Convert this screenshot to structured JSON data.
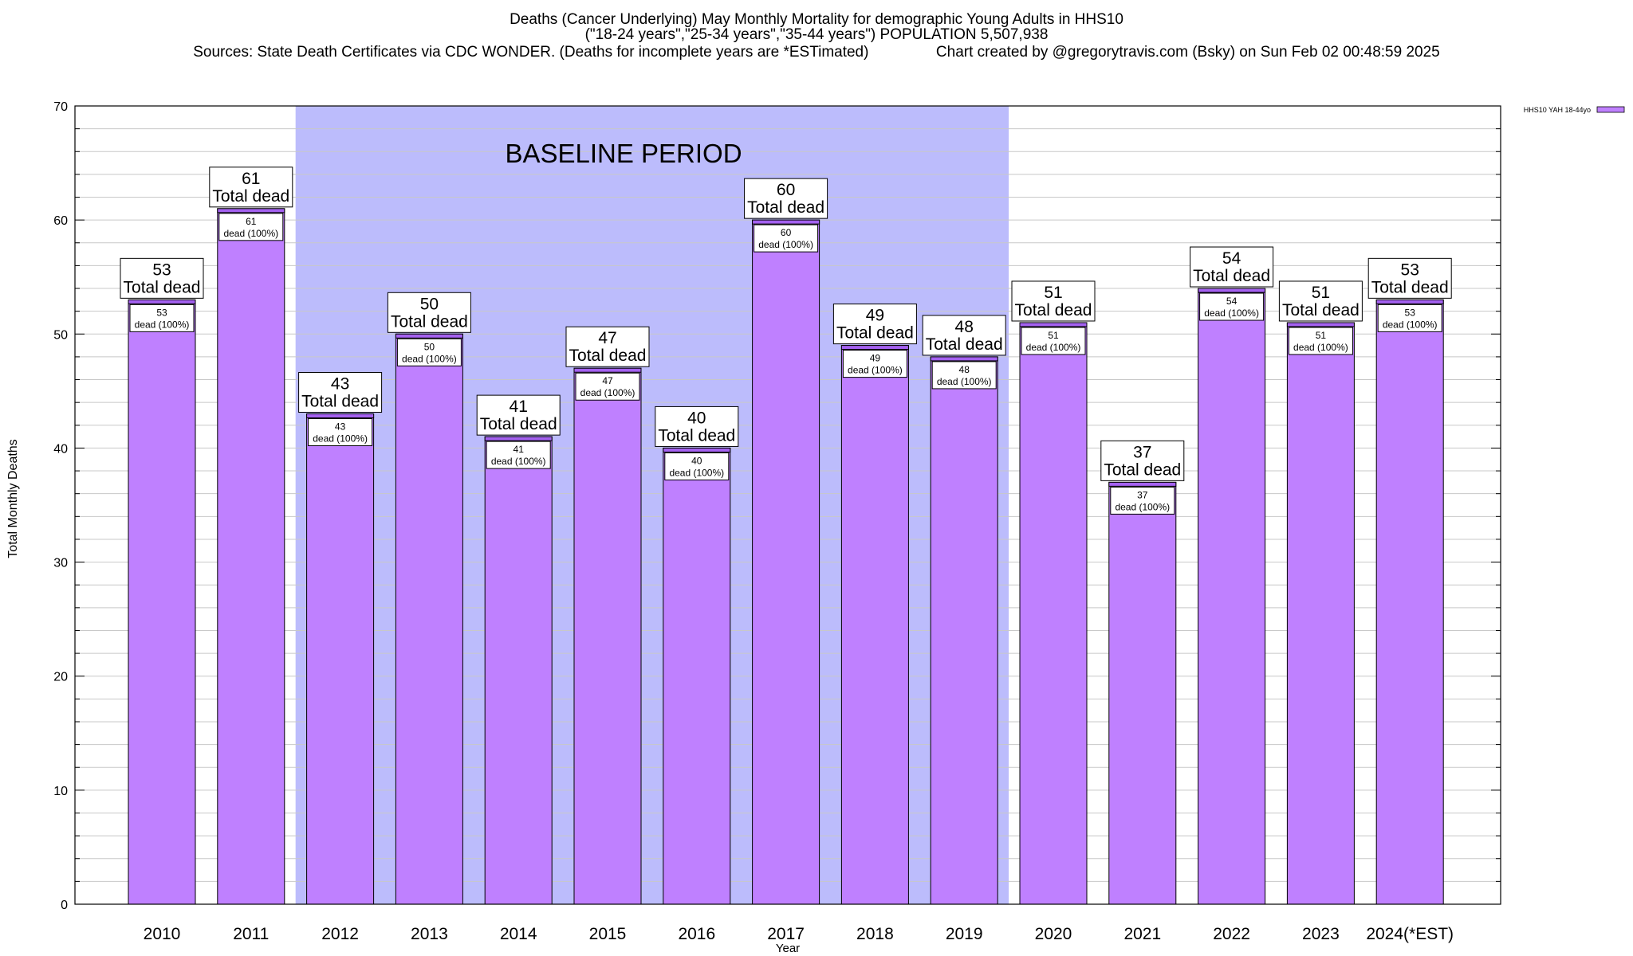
{
  "chart_data": {
    "type": "bar",
    "title_lines": [
      "Deaths (Cancer Underlying) May Monthly Mortality for demographic Young Adults in HHS10",
      "(\"18-24 years\",\"25-34 years\",\"35-44 years\") POPULATION 5,507,938",
      "Sources: State Death Certificates via CDC WONDER. (Deaths for incomplete years are *ESTimated)                Chart created by @gregorytravis.com (Bsky) on Sun Feb 02 00:48:59 2025"
    ],
    "xlabel": "Year",
    "ylabel": "Total Monthly Deaths",
    "ylim": [
      0,
      70
    ],
    "y_ticks": [
      0,
      10,
      20,
      30,
      40,
      50,
      60,
      70
    ],
    "grid": true,
    "legend": {
      "position": "top-right",
      "label": "HHS10 YAH 18-44yo"
    },
    "categories": [
      "2010",
      "2011",
      "2012",
      "2013",
      "2014",
      "2015",
      "2016",
      "2017",
      "2018",
      "2019",
      "2020",
      "2021",
      "2022",
      "2023",
      "2024(*EST)"
    ],
    "series": [
      {
        "name": "HHS10 YAH 18-44yo",
        "values": [
          53,
          61,
          43,
          50,
          41,
          47,
          40,
          60,
          49,
          48,
          51,
          37,
          54,
          51,
          53
        ]
      }
    ],
    "total_label_suffix": "Total dead",
    "inner_label_suffix": "dead (100%)",
    "baseline": {
      "label": "BASELINE PERIOD",
      "from": "2012",
      "to": "2019"
    },
    "colors": {
      "bar": "#bf80ff",
      "bar_top": "#a461f0",
      "baseline": "#bcbcfc",
      "grid": "#c8c8c8"
    }
  }
}
